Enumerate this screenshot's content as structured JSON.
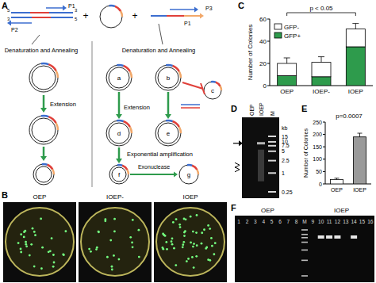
{
  "panel_labels": [
    "A",
    "B",
    "C",
    "D",
    "E",
    "F"
  ],
  "diagram": {
    "template_primers": [
      "P1",
      "P2"
    ],
    "insert_primers": [
      "P3",
      "P1"
    ],
    "strand_ends": [
      "5",
      "3"
    ],
    "operators": [
      "+",
      "+"
    ],
    "steps": {
      "denaturation": "Denaturation and Annealing",
      "extension": "Extension",
      "amplification": "Exponential amplification",
      "exonuclease": "Exonuclease"
    },
    "intermediates": [
      "a",
      "b",
      "c",
      "d",
      "e",
      "f",
      "g"
    ]
  },
  "plates": {
    "labels": [
      "OEP",
      "IOEP-",
      "IOEP"
    ],
    "colony_counts": [
      28,
      22,
      50
    ]
  },
  "chart_data": [
    {
      "type": "bar",
      "stacked": true,
      "y_label": "Number of Colonies",
      "categories": [
        "OEP",
        "IOEP-",
        "IOEP"
      ],
      "series": [
        {
          "name": "GFP+",
          "color": "#2e9b4c",
          "values": [
            9,
            8,
            35
          ]
        },
        {
          "name": "GFP-",
          "color": "#ffffff",
          "values": [
            11,
            13,
            16
          ],
          "errors": [
            5,
            5,
            5
          ]
        }
      ],
      "ylim": [
        0,
        60
      ],
      "yticks": [
        0,
        20,
        40,
        60
      ],
      "grid": false,
      "legend": "top-left",
      "annotations": [
        {
          "text": "p < 0.05"
        }
      ]
    },
    {
      "type": "bar",
      "y_label": "Number of Colonies",
      "categories": [
        "OEP",
        "IOEP"
      ],
      "values": [
        18,
        190
      ],
      "errors": [
        5,
        15
      ],
      "colors": [
        "#ffffff",
        "#9a9a9a"
      ],
      "ylim": [
        0,
        250
      ],
      "yticks": [
        0,
        50,
        100,
        150,
        200,
        250
      ],
      "grid": false,
      "annotations": [
        {
          "text": "p=0.0007"
        }
      ]
    }
  ],
  "gels": [
    {
      "lanes": [
        "OEP",
        "IOEP",
        "M"
      ],
      "marker_sizes": [
        15,
        10,
        7.5,
        5,
        2.5,
        1,
        0.25
      ],
      "unit": "kb",
      "band_kb": 9
    },
    {
      "groups": [
        "OEP",
        "IOEP"
      ],
      "lanes": [
        1,
        2,
        3,
        4,
        5,
        6,
        7,
        8,
        9,
        10,
        11,
        12,
        13,
        14,
        15,
        16
      ],
      "marker": "M",
      "band_lanes": [
        10,
        11,
        12,
        14
      ]
    }
  ]
}
